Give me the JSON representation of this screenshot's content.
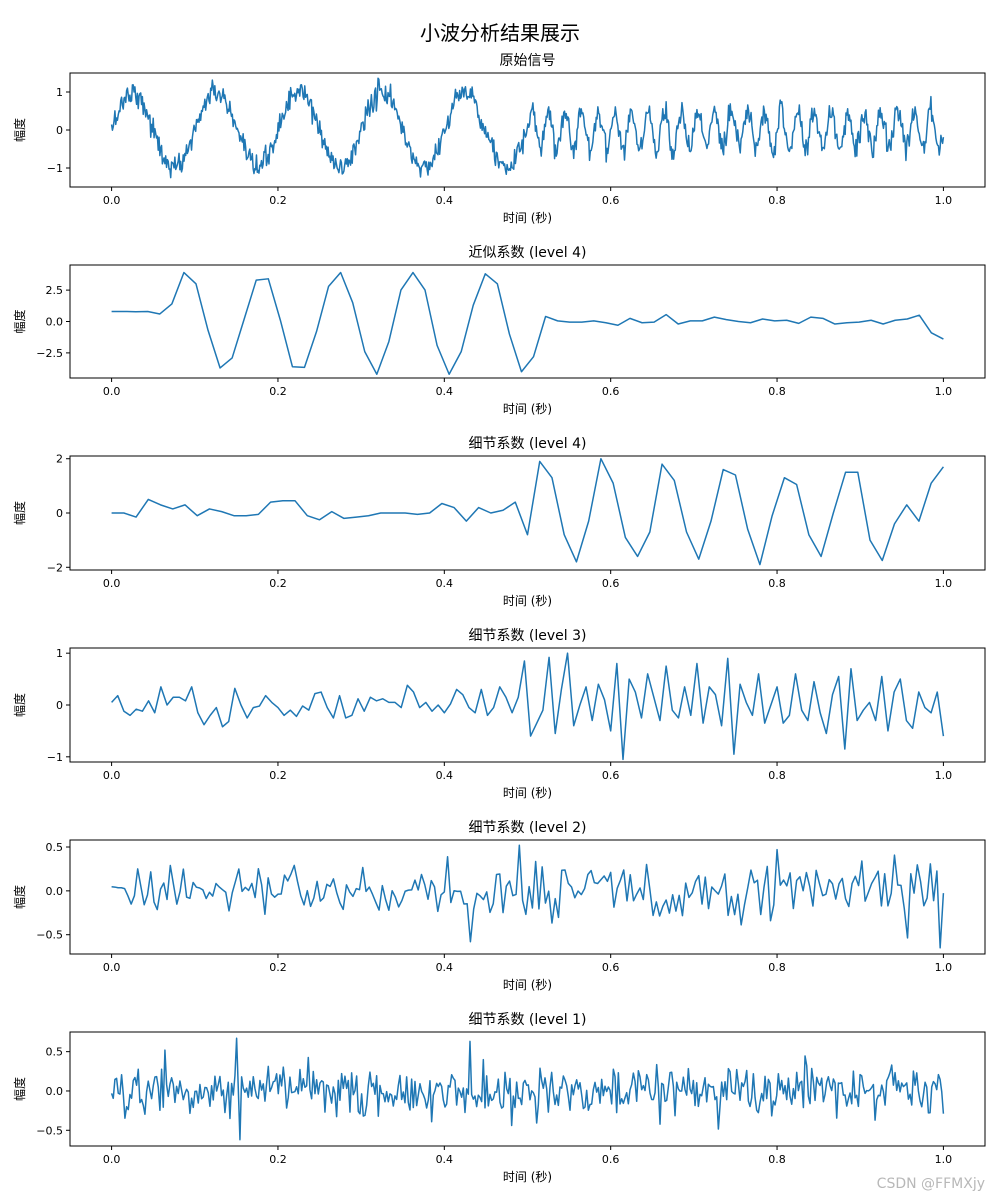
{
  "figure": {
    "suptitle": "小波分析结果展示",
    "watermark": "CSDN @FFMXjy",
    "line_color": "#1f77b4"
  },
  "chart_data": [
    {
      "type": "line",
      "title": "原始信号",
      "xlabel": "时间 (秒)",
      "ylabel": "幅度",
      "xlim": [
        -0.05,
        1.05
      ],
      "ylim": [
        -1.5,
        1.5
      ],
      "xticks": [
        0.0,
        0.2,
        0.4,
        0.6,
        0.8,
        1.0
      ],
      "xtick_labels": [
        "0.0",
        "0.2",
        "0.4",
        "0.6",
        "0.8",
        "1.0"
      ],
      "yticks": [
        -1,
        0,
        1
      ],
      "ytick_labels": [
        "−1",
        "0",
        "1"
      ],
      "signal": {
        "n_points": 1000,
        "segments": [
          {
            "t_start": 0.0,
            "t_end": 0.5,
            "frequency_hz": 10,
            "amplitude": 1.0
          },
          {
            "t_start": 0.5,
            "t_end": 1.0,
            "frequency_hz": 50,
            "amplitude": 0.5
          }
        ],
        "noise_std": 0.15
      }
    },
    {
      "type": "line",
      "title": "近似系数 (level 4)",
      "xlabel": "时间 (秒)",
      "ylabel": "幅度",
      "xlim": [
        -0.05,
        1.05
      ],
      "ylim": [
        -4.5,
        4.5
      ],
      "xticks": [
        0.0,
        0.2,
        0.4,
        0.6,
        0.8,
        1.0
      ],
      "xtick_labels": [
        "0.0",
        "0.2",
        "0.4",
        "0.6",
        "0.8",
        "1.0"
      ],
      "yticks": [
        -2.5,
        0,
        2.5
      ],
      "ytick_labels": [
        "−2.5",
        "0.0",
        "2.5"
      ],
      "y": [
        0.8,
        0.8,
        0.78,
        0.8,
        0.6,
        1.4,
        3.9,
        3.0,
        -0.7,
        -3.7,
        -2.9,
        0.2,
        3.3,
        3.4,
        0.1,
        -3.6,
        -3.65,
        -0.8,
        2.8,
        3.9,
        1.5,
        -2.4,
        -4.2,
        -1.6,
        2.5,
        3.9,
        2.5,
        -1.9,
        -4.2,
        -2.4,
        1.3,
        3.8,
        3.0,
        -1.0,
        -4.0,
        -2.8,
        0.4,
        0.05,
        -0.05,
        -0.05,
        0.05,
        -0.1,
        -0.3,
        0.25,
        -0.1,
        -0.05,
        0.55,
        -0.2,
        0.05,
        0.05,
        0.35,
        0.15,
        0.0,
        -0.1,
        0.2,
        0.05,
        0.1,
        -0.15,
        0.35,
        0.25,
        -0.2,
        -0.1,
        -0.05,
        0.1,
        -0.2,
        0.1,
        0.2,
        0.5,
        -0.9,
        -1.4
      ]
    },
    {
      "type": "line",
      "title": "细节系数 (level 4)",
      "xlabel": "时间 (秒)",
      "ylabel": "幅度",
      "xlim": [
        -0.05,
        1.05
      ],
      "ylim": [
        -2.1,
        2.1
      ],
      "xticks": [
        0.0,
        0.2,
        0.4,
        0.6,
        0.8,
        1.0
      ],
      "xtick_labels": [
        "0.0",
        "0.2",
        "0.4",
        "0.6",
        "0.8",
        "1.0"
      ],
      "yticks": [
        -2,
        0,
        2
      ],
      "ytick_labels": [
        "−2",
        "0",
        "2"
      ],
      "y": [
        0.0,
        0.0,
        -0.15,
        0.5,
        0.3,
        0.15,
        0.3,
        -0.1,
        0.15,
        0.05,
        -0.1,
        -0.1,
        -0.05,
        0.4,
        0.45,
        0.45,
        -0.1,
        -0.25,
        0.05,
        -0.2,
        -0.15,
        -0.1,
        0.0,
        0.0,
        0.0,
        -0.05,
        0.0,
        0.35,
        0.2,
        -0.3,
        0.2,
        0.0,
        0.1,
        0.4,
        -0.8,
        1.9,
        1.3,
        -0.8,
        -1.8,
        -0.3,
        2.0,
        1.1,
        -0.9,
        -1.6,
        -0.7,
        1.8,
        1.2,
        -0.7,
        -1.7,
        -0.3,
        1.6,
        1.4,
        -0.6,
        -1.9,
        -0.1,
        1.3,
        1.05,
        -0.8,
        -1.6,
        0.0,
        1.5,
        1.5,
        -1.0,
        -1.75,
        -0.4,
        0.3,
        -0.3,
        1.1,
        1.7
      ]
    },
    {
      "type": "line",
      "title": "细节系数 (level 3)",
      "xlabel": "时间 (秒)",
      "ylabel": "幅度",
      "xlim": [
        -0.05,
        1.05
      ],
      "ylim": [
        -1.1,
        1.1
      ],
      "xticks": [
        0.0,
        0.2,
        0.4,
        0.6,
        0.8,
        1.0
      ],
      "xtick_labels": [
        "0.0",
        "0.2",
        "0.4",
        "0.6",
        "0.8",
        "1.0"
      ],
      "yticks": [
        -1,
        0,
        1
      ],
      "ytick_labels": [
        "−1",
        "0",
        "1"
      ],
      "y": [
        0.05,
        0.18,
        -0.12,
        -0.2,
        -0.08,
        -0.12,
        0.08,
        -0.15,
        0.35,
        0.0,
        0.15,
        0.15,
        0.08,
        0.35,
        -0.15,
        -0.38,
        -0.2,
        -0.05,
        -0.42,
        -0.32,
        0.32,
        0.0,
        -0.25,
        -0.05,
        -0.02,
        0.18,
        0.05,
        -0.05,
        -0.2,
        -0.1,
        -0.22,
        -0.02,
        -0.1,
        0.22,
        0.25,
        -0.05,
        -0.25,
        0.18,
        -0.25,
        -0.2,
        0.12,
        -0.12,
        0.15,
        0.08,
        0.12,
        0.05,
        0.05,
        -0.05,
        0.38,
        0.25,
        -0.05,
        0.05,
        -0.12,
        0.0,
        -0.15,
        0.02,
        0.3,
        0.2,
        -0.05,
        -0.15,
        0.3,
        -0.2,
        -0.05,
        0.35,
        0.15,
        -0.15,
        0.15,
        0.85,
        -0.6,
        -0.35,
        -0.1,
        0.92,
        -0.55,
        0.3,
        1.0,
        -0.4,
        0.0,
        0.35,
        -0.3,
        0.4,
        0.1,
        -0.5,
        0.8,
        -1.05,
        0.5,
        0.25,
        -0.25,
        0.6,
        0.15,
        -0.3,
        0.75,
        -0.1,
        -0.25,
        0.35,
        -0.2,
        0.8,
        -0.35,
        0.35,
        0.2,
        -0.4,
        0.9,
        -0.95,
        0.4,
        0.05,
        -0.2,
        0.6,
        -0.35,
        0.0,
        0.35,
        -0.35,
        -0.2,
        0.6,
        -0.1,
        -0.3,
        0.45,
        -0.15,
        -0.55,
        0.2,
        0.55,
        -0.85,
        0.7,
        -0.3,
        -0.1,
        0.05,
        -0.3,
        0.55,
        -0.5,
        0.25,
        0.5,
        -0.3,
        -0.45,
        0.25,
        -0.05,
        -0.15,
        0.25,
        -0.6
      ]
    },
    {
      "type": "line",
      "title": "细节系数 (level 2)",
      "xlabel": "时间 (秒)",
      "ylabel": "幅度",
      "xlim": [
        -0.05,
        1.05
      ],
      "ylim": [
        -0.72,
        0.58
      ],
      "xticks": [
        0.0,
        0.2,
        0.4,
        0.6,
        0.8,
        1.0
      ],
      "xtick_labels": [
        "0.0",
        "0.2",
        "0.4",
        "0.6",
        "0.8",
        "1.0"
      ],
      "yticks": [
        -0.5,
        0.0,
        0.5
      ],
      "ytick_labels": [
        "−0.5",
        "0.0",
        "0.5"
      ],
      "series": {
        "n_points": 256,
        "amplitude_first_half": 0.18,
        "amplitude_second_half": 0.24,
        "noted_extremes": [
          {
            "x": 0.49,
            "y": 0.52
          },
          {
            "x": 0.43,
            "y": -0.58
          },
          {
            "x": 0.995,
            "y": -0.65
          },
          {
            "x": 0.03,
            "y": 0.25
          }
        ]
      }
    },
    {
      "type": "line",
      "title": "细节系数 (level 1)",
      "xlabel": "时间 (秒)",
      "ylabel": "幅度",
      "xlim": [
        -0.05,
        1.05
      ],
      "ylim": [
        -0.7,
        0.75
      ],
      "xticks": [
        0.0,
        0.2,
        0.4,
        0.6,
        0.8,
        1.0
      ],
      "xtick_labels": [
        "0.0",
        "0.2",
        "0.4",
        "0.6",
        "0.8",
        "1.0"
      ],
      "yticks": [
        -0.5,
        0.0,
        0.5
      ],
      "ytick_labels": [
        "−0.5",
        "0.0",
        "0.5"
      ],
      "series": {
        "n_points": 500,
        "amplitude": 0.2,
        "noted_extremes": [
          {
            "x": 0.15,
            "y": 0.67
          },
          {
            "x": 0.154,
            "y": -0.62
          },
          {
            "x": 0.43,
            "y": 0.63
          },
          {
            "x": 0.065,
            "y": 0.52
          }
        ]
      }
    }
  ]
}
